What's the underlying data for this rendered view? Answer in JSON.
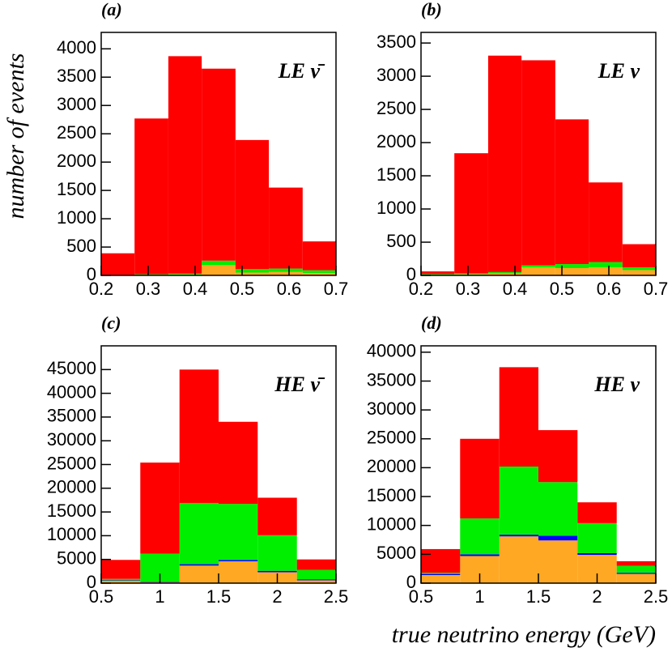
{
  "chart_data": [
    {
      "type": "histogram",
      "title": "(a)",
      "annotation": "LE ν̄",
      "ylabel": "number of events",
      "bins": [
        0.2,
        0.271,
        0.343,
        0.414,
        0.486,
        0.557,
        0.629,
        0.7
      ],
      "series": [
        {
          "color": "#ffa824",
          "values": [
            0,
            10,
            20,
            180,
            50,
            60,
            40
          ]
        },
        {
          "color": "#0000ff",
          "values": [
            0,
            0,
            0,
            0,
            0,
            0,
            0
          ]
        },
        {
          "color": "#00ee00",
          "values": [
            10,
            10,
            10,
            80,
            60,
            60,
            50
          ]
        },
        {
          "color": "#ff0000",
          "values": [
            380,
            2750,
            3840,
            3390,
            2280,
            1430,
            510
          ]
        }
      ],
      "xlim": [
        0.2,
        0.7
      ],
      "xticks": [
        0.2,
        0.3,
        0.4,
        0.5,
        0.6,
        0.7
      ],
      "ylim": [
        0,
        4290
      ],
      "yticks": [
        0,
        500,
        1000,
        1500,
        2000,
        2500,
        3000,
        3500,
        4000
      ]
    },
    {
      "type": "histogram",
      "title": "(b)",
      "annotation": "LE ν",
      "bins": [
        0.2,
        0.271,
        0.343,
        0.414,
        0.486,
        0.557,
        0.629,
        0.7
      ],
      "series": [
        {
          "color": "#ffa824",
          "values": [
            10,
            20,
            30,
            120,
            110,
            120,
            80
          ]
        },
        {
          "color": "#0000ff",
          "values": [
            0,
            0,
            0,
            0,
            0,
            0,
            0
          ]
        },
        {
          "color": "#00ee00",
          "values": [
            10,
            10,
            20,
            30,
            60,
            80,
            40
          ]
        },
        {
          "color": "#ff0000",
          "values": [
            40,
            1810,
            3260,
            3090,
            2180,
            1200,
            350
          ]
        }
      ],
      "xlim": [
        0.2,
        0.7
      ],
      "xticks": [
        0.2,
        0.3,
        0.4,
        0.5,
        0.6,
        0.7
      ],
      "ylim": [
        0,
        3660
      ],
      "yticks": [
        0,
        500,
        1000,
        1500,
        2000,
        2500,
        3000,
        3500
      ]
    },
    {
      "type": "histogram",
      "title": "(c)",
      "annotation": "HE ν̄",
      "bins": [
        0.5,
        0.833,
        1.167,
        1.5,
        1.833,
        2.167,
        2.5
      ],
      "series": [
        {
          "color": "#ffa824",
          "values": [
            500,
            200,
            3700,
            4600,
            2300,
            600
          ]
        },
        {
          "color": "#0000ff",
          "values": [
            100,
            100,
            300,
            300,
            300,
            200
          ]
        },
        {
          "color": "#00ee00",
          "values": [
            300,
            5900,
            12900,
            11800,
            7500,
            2000
          ]
        },
        {
          "color": "#ff0000",
          "values": [
            4000,
            19200,
            28100,
            17300,
            7900,
            2200
          ]
        }
      ],
      "xlim": [
        0.5,
        2.5
      ],
      "xticks": [
        0.5,
        1,
        1.5,
        2,
        2.5
      ],
      "ylim": [
        0,
        50000
      ],
      "yticks": [
        0,
        5000,
        10000,
        15000,
        20000,
        25000,
        30000,
        35000,
        40000,
        45000
      ]
    },
    {
      "type": "histogram",
      "title": "(d)",
      "annotation": "HE ν",
      "xlabel": "true neutrino energy (GeV)",
      "bins": [
        0.5,
        0.833,
        1.167,
        1.5,
        1.833,
        2.167,
        2.5
      ],
      "series": [
        {
          "color": "#ffa824",
          "values": [
            1400,
            4700,
            8100,
            7400,
            4900,
            1600
          ]
        },
        {
          "color": "#0000ff",
          "values": [
            200,
            300,
            300,
            800,
            300,
            200
          ]
        },
        {
          "color": "#00ee00",
          "values": [
            200,
            6200,
            11800,
            9300,
            5200,
            1200
          ]
        },
        {
          "color": "#ff0000",
          "values": [
            4100,
            13800,
            17200,
            9000,
            3600,
            800
          ]
        }
      ],
      "xlim": [
        0.5,
        2.5
      ],
      "xticks": [
        0.5,
        1,
        1.5,
        2,
        2.5
      ],
      "ylim": [
        0,
        41100
      ],
      "yticks": [
        0,
        5000,
        10000,
        15000,
        20000,
        25000,
        30000,
        35000,
        40000
      ]
    }
  ]
}
